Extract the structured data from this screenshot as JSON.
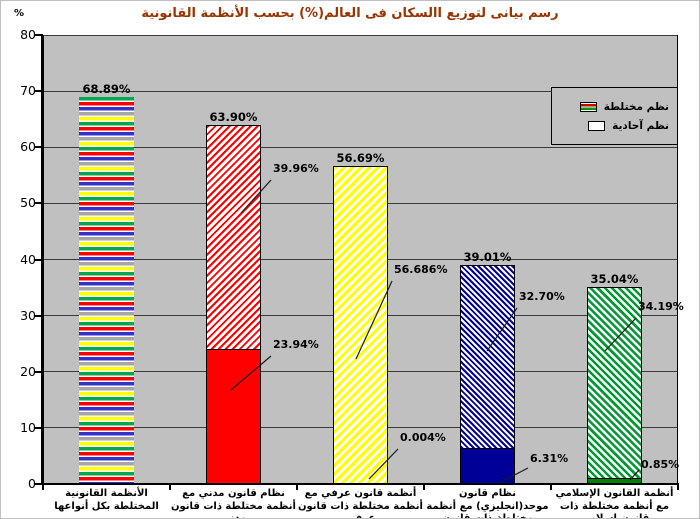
{
  "title": "رسم بيانى لتوزيع االسكان فى العالم(%) بحسب الأنظمة القانونية",
  "y_axis": {
    "unit": "%",
    "ticks": [
      "0",
      "10",
      "20",
      "30",
      "40",
      "50",
      "60",
      "70",
      "80"
    ]
  },
  "legend": [
    {
      "label": "نظم مختلطة",
      "swatch": "mixed-stripes"
    },
    {
      "label": "نظم آحادية",
      "swatch": "plain-white"
    }
  ],
  "colors": {
    "title": "#993300",
    "plot_background": "#c0c0c0",
    "bar_red": "#ff0000",
    "bar_yellow": "#ffff00",
    "bar_blue": "#000099",
    "bar_green_solid": "#008000",
    "bar_green_hatch": "#009933",
    "multistripe": [
      "#00a651",
      "#ff0000",
      "#3333cc",
      "#a6a6a6",
      "#ffff00"
    ]
  },
  "chart_data": {
    "type": "bar",
    "stacked": true,
    "title": "رسم بيانى لتوزيع االسكان فى العالم(%) بحسب الأنظمة القانونية",
    "ylabel": "%",
    "ylim": [
      0,
      80
    ],
    "grid": true,
    "legend_position": "top-right",
    "legend_entries": [
      "نظم مختلطة",
      "نظم آحادية"
    ],
    "categories": [
      "الأنظمة القانونية المختلطة بكل أنواعها",
      "نظام قانون مدني مع أنظمة مختلطة ذات قانون مدني",
      "أنظمة قانون عرفي مع أنظمة مختلطة ذات قانون عرفي",
      "نظام قانون موحد(انجليزي) مع أنظمة مختلطة ذات قانون موحد(انجليزي)",
      "أنظمة القانون الإسلامي مع أنظمة مختلطة ذات قانون إسلامي"
    ],
    "bars": [
      {
        "total": 68.89,
        "total_label": "68.89%",
        "pattern": "multicolor-stripes",
        "segments": [
          {
            "name": "نظم مختلطة",
            "value": 68.89,
            "label": ""
          }
        ]
      },
      {
        "total": 63.9,
        "total_label": "63.90%",
        "pattern": "red",
        "segments": [
          {
            "name": "نظم أحادية",
            "value": 23.94,
            "label": "23.94%"
          },
          {
            "name": "نظم مختلطة",
            "value": 39.96,
            "label": "39.96%"
          }
        ]
      },
      {
        "total": 56.69,
        "total_label": "56.69%",
        "pattern": "yellow",
        "segments": [
          {
            "name": "نظم أحادية",
            "value": 0.004,
            "label": "0.004%"
          },
          {
            "name": "نظم مختلطة",
            "value": 56.686,
            "label": "56.686%"
          }
        ]
      },
      {
        "total": 39.01,
        "total_label": "39.01%",
        "pattern": "blue",
        "segments": [
          {
            "name": "نظم أحادية",
            "value": 6.31,
            "label": "6.31%"
          },
          {
            "name": "نظم مختلطة",
            "value": 32.7,
            "label": "32.70%"
          }
        ]
      },
      {
        "total": 35.04,
        "total_label": "35.04%",
        "pattern": "green",
        "segments": [
          {
            "name": "نظم أحادية",
            "value": 0.85,
            "label": "0.85%"
          },
          {
            "name": "نظم مختلطة",
            "value": 34.19,
            "label": "34.19%"
          }
        ]
      }
    ]
  }
}
